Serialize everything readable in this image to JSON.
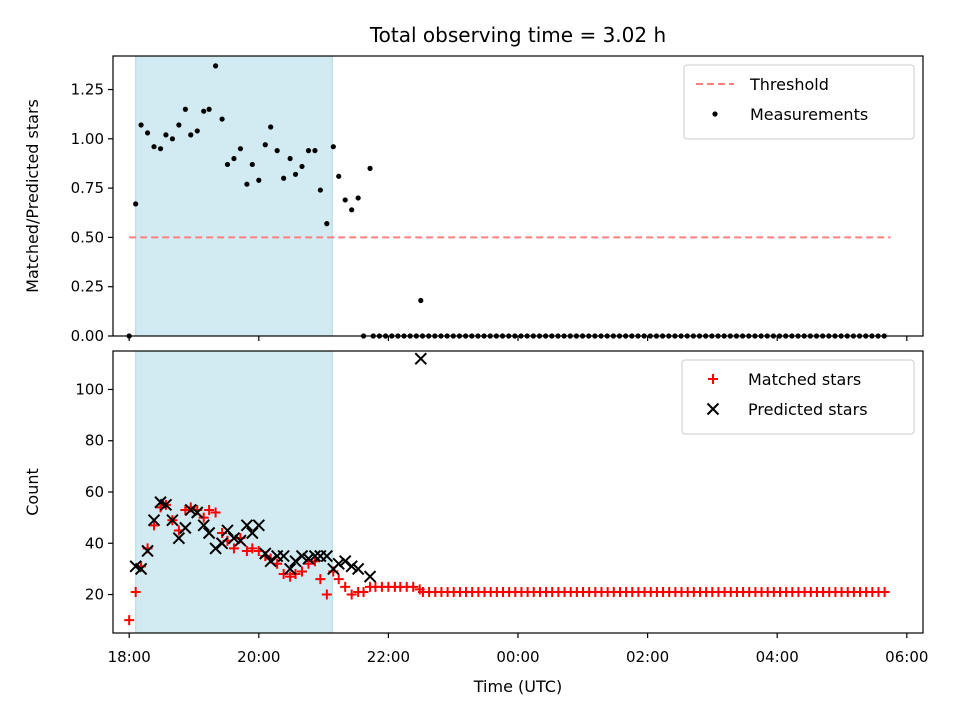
{
  "chart_data": {
    "type": "scatter",
    "title": "Total observing time = 3.02 h",
    "shaded_interval": [
      "18:06",
      "21:08"
    ],
    "shade_color": "#add8e6",
    "x_axis": {
      "label": "Time (UTC)",
      "range": [
        "17:45",
        "06:15"
      ],
      "ticks": [
        "18:00",
        "20:00",
        "22:00",
        "00:00",
        "02:00",
        "04:00",
        "06:00"
      ]
    },
    "panels": [
      {
        "name": "ratio",
        "ylabel": "Matched/Predicted stars",
        "ylim": [
          0,
          1.42
        ],
        "yticks": [
          "0.00",
          "0.25",
          "0.50",
          "0.75",
          "1.00",
          "1.25"
        ],
        "legend": "top-right",
        "series": [
          {
            "name": "Threshold",
            "kind": "line",
            "style": "dashed",
            "color": "#ff7f7f",
            "x_range": [
              "18:00",
              "05:45"
            ],
            "y": 0.5
          },
          {
            "name": "Measurements",
            "kind": "scatter",
            "marker": "dot",
            "color": "#000000",
            "points": [
              [
                "18:00",
                0.0
              ],
              [
                "18:06",
                0.67
              ],
              [
                "18:11",
                1.07
              ],
              [
                "18:17",
                1.03
              ],
              [
                "18:23",
                0.96
              ],
              [
                "18:29",
                0.95
              ],
              [
                "18:34",
                1.02
              ],
              [
                "18:40",
                1.0
              ],
              [
                "18:46",
                1.07
              ],
              [
                "18:52",
                1.15
              ],
              [
                "18:57",
                1.02
              ],
              [
                "19:03",
                1.04
              ],
              [
                "19:09",
                1.14
              ],
              [
                "19:14",
                1.15
              ],
              [
                "19:20",
                1.37
              ],
              [
                "19:26",
                1.1
              ],
              [
                "19:31",
                0.87
              ],
              [
                "19:37",
                0.9
              ],
              [
                "19:43",
                0.95
              ],
              [
                "19:49",
                0.77
              ],
              [
                "19:54",
                0.87
              ],
              [
                "20:00",
                0.79
              ],
              [
                "20:06",
                0.97
              ],
              [
                "20:11",
                1.06
              ],
              [
                "20:17",
                0.94
              ],
              [
                "20:23",
                0.8
              ],
              [
                "20:29",
                0.9
              ],
              [
                "20:34",
                0.82
              ],
              [
                "20:40",
                0.86
              ],
              [
                "20:46",
                0.94
              ],
              [
                "20:52",
                0.94
              ],
              [
                "20:57",
                0.74
              ],
              [
                "21:03",
                0.57
              ],
              [
                "21:09",
                0.96
              ],
              [
                "21:14",
                0.81
              ],
              [
                "21:20",
                0.69
              ],
              [
                "21:26",
                0.64
              ],
              [
                "21:32",
                0.7
              ],
              [
                "21:37",
                0.0
              ],
              [
                "21:43",
                0.85
              ],
              [
                "22:30",
                0.18
              ]
            ],
            "zero_run": {
              "from": "21:46",
              "to": "05:42",
              "step_minutes": 5.7,
              "y": 0.0
            }
          }
        ]
      },
      {
        "name": "counts",
        "ylabel": "Count",
        "ylim": [
          5,
          115
        ],
        "yticks": [
          "20",
          "40",
          "60",
          "80",
          "100"
        ],
        "legend": "top-right",
        "series": [
          {
            "name": "Matched stars",
            "kind": "scatter",
            "marker": "plus",
            "color": "#ff0000",
            "points": [
              [
                "18:00",
                10
              ],
              [
                "18:06",
                21
              ],
              [
                "18:11",
                31
              ],
              [
                "18:17",
                38
              ],
              [
                "18:23",
                47
              ],
              [
                "18:29",
                54
              ],
              [
                "18:34",
                55
              ],
              [
                "18:40",
                49
              ],
              [
                "18:46",
                45
              ],
              [
                "18:52",
                53
              ],
              [
                "18:57",
                54
              ],
              [
                "19:03",
                53
              ],
              [
                "19:09",
                50
              ],
              [
                "19:14",
                53
              ],
              [
                "19:20",
                52
              ],
              [
                "19:26",
                44
              ],
              [
                "19:31",
                41
              ],
              [
                "19:37",
                38
              ],
              [
                "19:43",
                42
              ],
              [
                "19:49",
                37
              ],
              [
                "19:54",
                38
              ],
              [
                "20:00",
                37
              ],
              [
                "20:06",
                35
              ],
              [
                "20:11",
                34
              ],
              [
                "20:17",
                32
              ],
              [
                "20:23",
                28
              ],
              [
                "20:29",
                27
              ],
              [
                "20:34",
                28
              ],
              [
                "20:40",
                29
              ],
              [
                "20:46",
                32
              ],
              [
                "20:52",
                33
              ],
              [
                "20:57",
                26
              ],
              [
                "21:03",
                20
              ],
              [
                "21:09",
                29
              ],
              [
                "21:14",
                26
              ],
              [
                "21:20",
                23
              ],
              [
                "21:26",
                20
              ],
              [
                "21:32",
                21
              ],
              [
                "21:37",
                21
              ],
              [
                "21:43",
                23
              ],
              [
                "21:48",
                23
              ],
              [
                "21:54",
                23
              ],
              [
                "22:00",
                23
              ],
              [
                "22:06",
                23
              ],
              [
                "22:11",
                23
              ],
              [
                "22:17",
                23
              ],
              [
                "22:23",
                23
              ],
              [
                "22:29",
                22
              ]
            ],
            "constant_run": {
              "from": "22:32",
              "to": "05:42",
              "step_minutes": 5.7,
              "y": 21
            }
          },
          {
            "name": "Predicted stars",
            "kind": "scatter",
            "marker": "x",
            "color": "#000000",
            "points": [
              [
                "18:06",
                31
              ],
              [
                "18:11",
                30
              ],
              [
                "18:17",
                37
              ],
              [
                "18:23",
                49
              ],
              [
                "18:29",
                56
              ],
              [
                "18:34",
                55
              ],
              [
                "18:40",
                49
              ],
              [
                "18:46",
                42
              ],
              [
                "18:52",
                46
              ],
              [
                "18:57",
                53
              ],
              [
                "19:03",
                52
              ],
              [
                "19:09",
                47
              ],
              [
                "19:14",
                44
              ],
              [
                "19:20",
                38
              ],
              [
                "19:26",
                40
              ],
              [
                "19:31",
                45
              ],
              [
                "19:37",
                42
              ],
              [
                "19:43",
                41
              ],
              [
                "19:49",
                47
              ],
              [
                "19:54",
                44
              ],
              [
                "20:00",
                47
              ],
              [
                "20:06",
                36
              ],
              [
                "20:11",
                33
              ],
              [
                "20:17",
                35
              ],
              [
                "20:23",
                35
              ],
              [
                "20:29",
                30
              ],
              [
                "20:34",
                33
              ],
              [
                "20:40",
                35
              ],
              [
                "20:46",
                34
              ],
              [
                "20:52",
                35
              ],
              [
                "20:57",
                35
              ],
              [
                "21:03",
                35
              ],
              [
                "21:09",
                30
              ],
              [
                "21:14",
                32
              ],
              [
                "21:20",
                33
              ],
              [
                "21:26",
                31
              ],
              [
                "21:32",
                30
              ],
              [
                "21:43",
                27
              ],
              [
                "22:30",
                112
              ]
            ]
          }
        ]
      }
    ]
  }
}
